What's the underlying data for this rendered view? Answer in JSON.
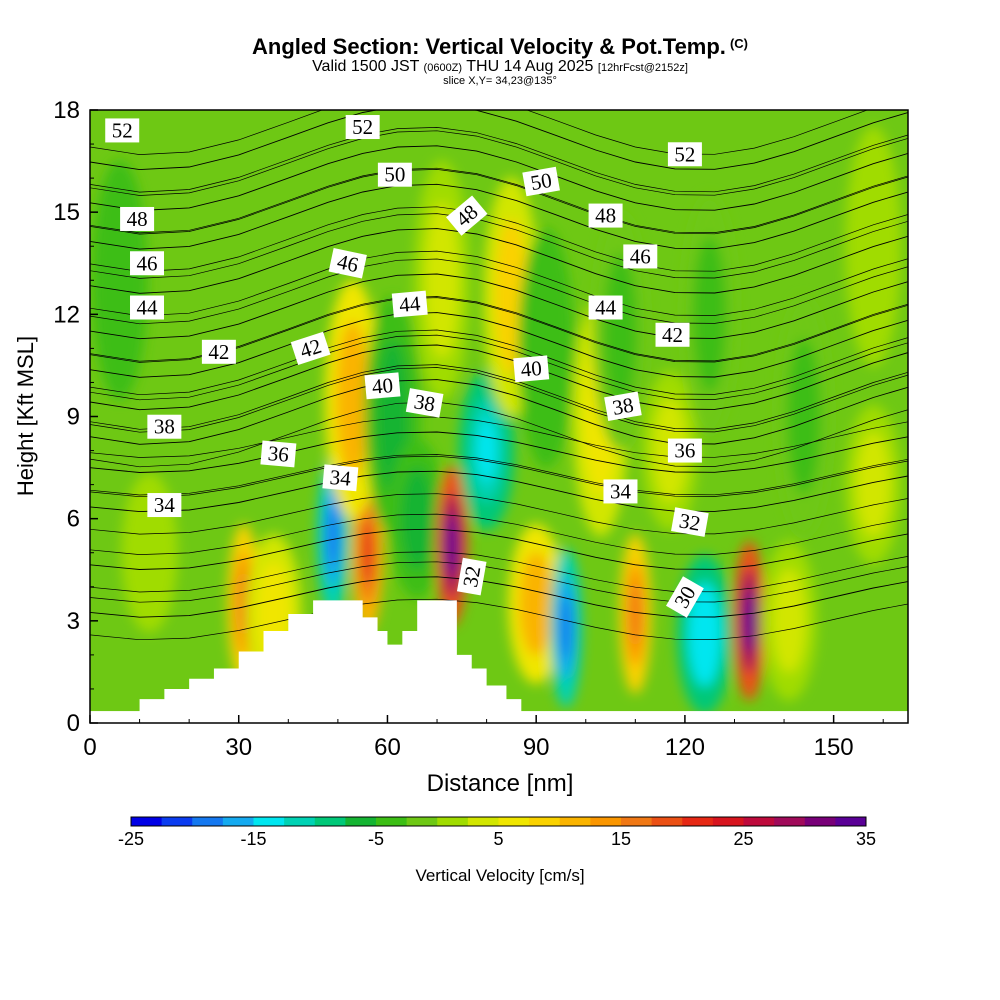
{
  "title": "Angled Section: Vertical Velocity & Pot.Temp.",
  "title_mark": "(C)",
  "valid": {
    "prefix": "Valid 1500 JST",
    "utc": "(0600Z)",
    "date": "THU 14 Aug 2025",
    "forecast": "[12hrFcst@2152z]"
  },
  "slice": "slice X,Y= 34,23@135°",
  "chart_data": {
    "type": "heatmap",
    "title": "Angled Section: Vertical Velocity & Pot.Temp.",
    "xlabel": "Distance [nm]",
    "ylabel": "Height [Kft MSL]",
    "xlim": [
      0,
      165
    ],
    "ylim": [
      0,
      18
    ],
    "x_ticks": [
      0,
      30,
      60,
      90,
      120,
      150
    ],
    "y_ticks": [
      0,
      3,
      6,
      9,
      12,
      15,
      18
    ],
    "colorbar": {
      "label": "Vertical Velocity [cm/s]",
      "min": -25,
      "max": 35,
      "step": 2.5,
      "tick_labels": [
        "-25",
        "-15",
        "-5",
        "5",
        "15",
        "25",
        "35"
      ],
      "colors": [
        "#0000e6",
        "#0a3cf0",
        "#1478f0",
        "#14aaf0",
        "#00e6f0",
        "#00d2b4",
        "#00c878",
        "#14b432",
        "#3cbe14",
        "#6ec814",
        "#a0dc00",
        "#d2e600",
        "#f0e600",
        "#fad200",
        "#fab400",
        "#fa9600",
        "#f07814",
        "#eb5014",
        "#e62814",
        "#d7141e",
        "#be0a3c",
        "#a00a5a",
        "#780078",
        "#5a0096"
      ]
    },
    "terrain_profile": {
      "x": [
        10,
        15,
        20,
        25,
        30,
        35,
        40,
        45,
        48,
        52,
        55,
        58,
        60,
        63,
        66,
        70,
        74,
        77,
        80,
        84,
        87,
        89
      ],
      "height": [
        0.7,
        1.0,
        1.3,
        1.6,
        2.1,
        2.7,
        3.2,
        3.6,
        3.6,
        3.6,
        3.1,
        2.7,
        2.3,
        2.7,
        3.6,
        3.6,
        2.0,
        1.6,
        1.1,
        0.7,
        0.3,
        0.0
      ]
    },
    "vertical_velocity_features": [
      {
        "x": 6,
        "z": 13,
        "value": -5
      },
      {
        "x": 12,
        "z": 5,
        "value": 2
      },
      {
        "x": 31,
        "z": 3.5,
        "value": 17
      },
      {
        "x": 37,
        "z": 3.2,
        "value": 6
      },
      {
        "x": 49,
        "z": 5.5,
        "value": -20
      },
      {
        "x": 56,
        "z": 5.0,
        "value": 20
      },
      {
        "x": 53,
        "z": 9.5,
        "value": 12
      },
      {
        "x": 61,
        "z": 9,
        "value": -6
      },
      {
        "x": 66,
        "z": 6,
        "value": -6
      },
      {
        "x": 71,
        "z": 13,
        "value": 4
      },
      {
        "x": 73,
        "z": 5.2,
        "value": 33
      },
      {
        "x": 80,
        "z": 8,
        "value": -14
      },
      {
        "x": 85,
        "z": 12.5,
        "value": 9
      },
      {
        "x": 90,
        "z": 3.5,
        "value": 12
      },
      {
        "x": 96,
        "z": 2.8,
        "value": -20
      },
      {
        "x": 92,
        "z": 11,
        "value": -5
      },
      {
        "x": 103,
        "z": 9,
        "value": 6
      },
      {
        "x": 110,
        "z": 3.2,
        "value": 17
      },
      {
        "x": 107,
        "z": 11.5,
        "value": -4
      },
      {
        "x": 117,
        "z": 8,
        "value": 4
      },
      {
        "x": 124,
        "z": 2.6,
        "value": -15
      },
      {
        "x": 125,
        "z": 12,
        "value": -3
      },
      {
        "x": 133,
        "z": 3.0,
        "value": 33
      },
      {
        "x": 141,
        "z": 3,
        "value": 3
      },
      {
        "x": 144,
        "z": 9,
        "value": -4
      },
      {
        "x": 158,
        "z": 7,
        "value": 3
      },
      {
        "x": 158,
        "z": 14,
        "value": 2
      }
    ],
    "isentropes": {
      "unit": "°C potential temperature",
      "levels": [
        30,
        32,
        34,
        36,
        38,
        40,
        42,
        44,
        46,
        48,
        50,
        52
      ],
      "labels": [
        {
          "text": "52",
          "x": 6.5,
          "z": 17.4,
          "angle": 0
        },
        {
          "text": "52",
          "x": 55,
          "z": 17.5,
          "angle": 0
        },
        {
          "text": "52",
          "x": 120,
          "z": 16.7,
          "angle": 0
        },
        {
          "text": "50",
          "x": 61.5,
          "z": 16.1,
          "angle": 0
        },
        {
          "text": "50",
          "x": 91,
          "z": 15.9,
          "angle": -10
        },
        {
          "text": "48",
          "x": 9.5,
          "z": 14.8,
          "angle": 0
        },
        {
          "text": "48",
          "x": 76,
          "z": 14.9,
          "angle": -40
        },
        {
          "text": "48",
          "x": 104,
          "z": 14.9,
          "angle": 0
        },
        {
          "text": "46",
          "x": 11.5,
          "z": 13.5,
          "angle": 0
        },
        {
          "text": "46",
          "x": 52,
          "z": 13.5,
          "angle": 12
        },
        {
          "text": "46",
          "x": 111,
          "z": 13.7,
          "angle": 0
        },
        {
          "text": "44",
          "x": 11.5,
          "z": 12.2,
          "angle": 0
        },
        {
          "text": "44",
          "x": 64.5,
          "z": 12.3,
          "angle": -5
        },
        {
          "text": "44",
          "x": 104,
          "z": 12.2,
          "angle": 0
        },
        {
          "text": "42",
          "x": 26,
          "z": 10.9,
          "angle": 0
        },
        {
          "text": "42",
          "x": 44.5,
          "z": 11.0,
          "angle": -18
        },
        {
          "text": "42",
          "x": 117.5,
          "z": 11.4,
          "angle": 0
        },
        {
          "text": "40",
          "x": 59,
          "z": 9.9,
          "angle": -5
        },
        {
          "text": "40",
          "x": 89,
          "z": 10.4,
          "angle": -5
        },
        {
          "text": "38",
          "x": 15,
          "z": 8.7,
          "angle": 0
        },
        {
          "text": "38",
          "x": 67.5,
          "z": 9.4,
          "angle": 10
        },
        {
          "text": "38",
          "x": 107.5,
          "z": 9.3,
          "angle": -10
        },
        {
          "text": "36",
          "x": 38,
          "z": 7.9,
          "angle": 5
        },
        {
          "text": "36",
          "x": 120,
          "z": 8.0,
          "angle": 0
        },
        {
          "text": "34",
          "x": 15,
          "z": 6.4,
          "angle": 0
        },
        {
          "text": "34",
          "x": 50.5,
          "z": 7.2,
          "angle": 5
        },
        {
          "text": "34",
          "x": 107,
          "z": 6.8,
          "angle": 0
        },
        {
          "text": "32",
          "x": 77,
          "z": 4.3,
          "angle": -80
        },
        {
          "text": "32",
          "x": 121,
          "z": 5.9,
          "angle": 10
        },
        {
          "text": "30",
          "x": 120,
          "z": 3.7,
          "angle": -60
        }
      ]
    }
  }
}
